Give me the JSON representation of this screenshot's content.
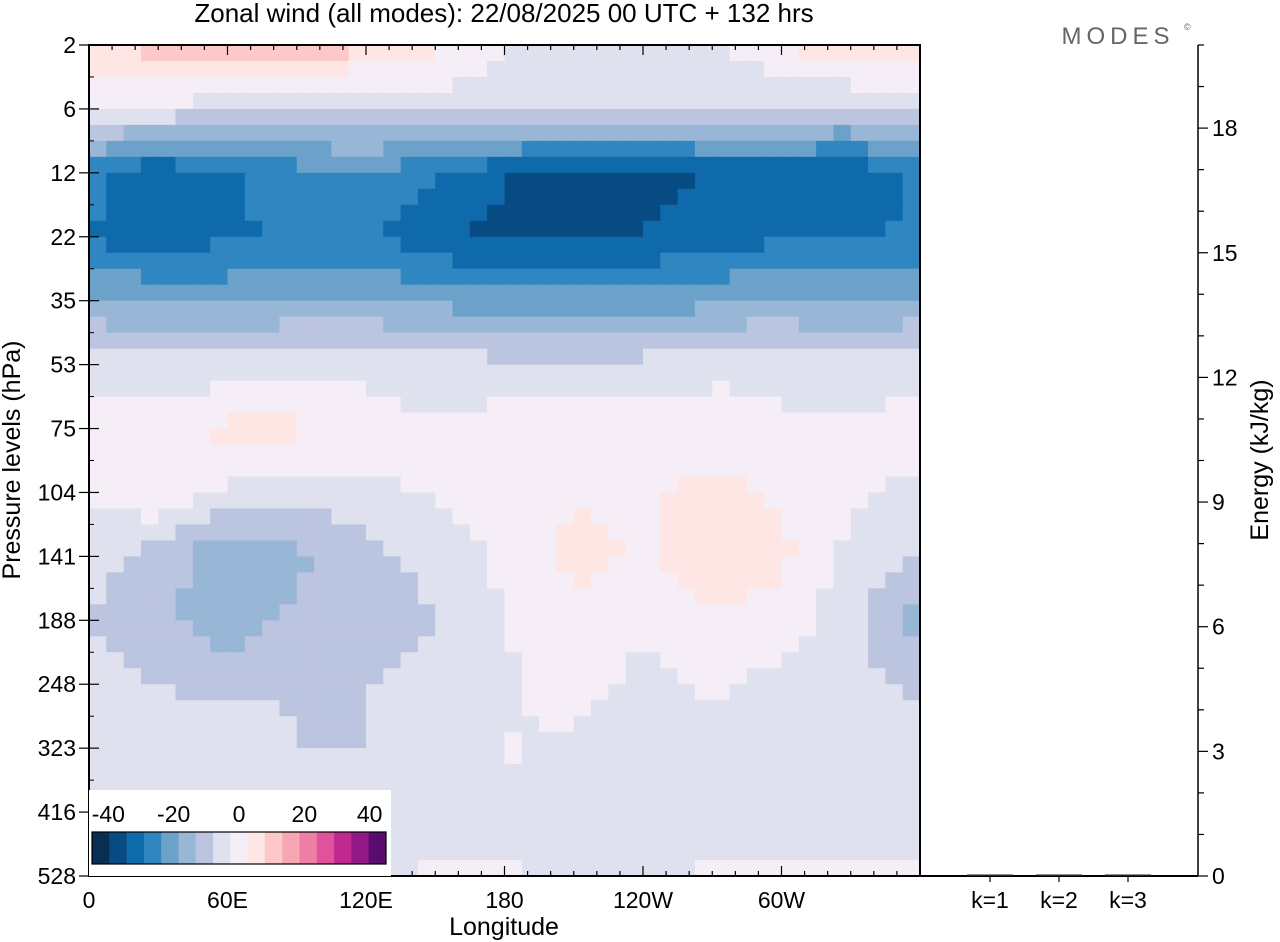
{
  "chart_data": {
    "type": "heatmap",
    "title": "Zonal wind (all modes):  22/08/2025  00 UTC  + 132 hrs",
    "brand": "MODES",
    "brand_mark": "©",
    "xlabel": "Longitude",
    "ylabel": "Pressure levels (hPa)",
    "x_ticks": [
      "0",
      "60E",
      "120E",
      "180",
      "120W",
      "60W"
    ],
    "x_tick_values": [
      0,
      60,
      120,
      180,
      240,
      300
    ],
    "xlim": [
      0,
      360
    ],
    "y_ticks": [
      "2",
      "6",
      "12",
      "22",
      "35",
      "53",
      "75",
      "104",
      "141",
      "188",
      "248",
      "323",
      "416",
      "528"
    ],
    "colorbar": {
      "tick_labels": [
        "-40",
        "-20",
        "0",
        "20",
        "40"
      ],
      "tick_values": [
        -40,
        -20,
        0,
        20,
        40
      ],
      "range": [
        -45,
        45
      ],
      "colors": [
        "#0a2e50",
        "#084a82",
        "#0e6aaa",
        "#2f86c0",
        "#6ca2ca",
        "#98b6d6",
        "#bcc5e0",
        "#dfe1ee",
        "#f6eef6",
        "#fde6e4",
        "#fcc9c8",
        "#f7a6b4",
        "#ef7ea5",
        "#e0529c",
        "#c02a90",
        "#921985",
        "#5a0c6e"
      ]
    },
    "field": {
      "rows": [
        {
          "level": "2",
          "values": [
            8,
            10,
            16,
            14,
            8,
            4,
            -2,
            -4,
            -6,
            -4,
            2,
            10,
            6
          ]
        },
        {
          "level": "6",
          "values": [
            -2,
            -4,
            -6,
            -8,
            -8,
            -6,
            -6,
            -6,
            -6,
            -6,
            -8,
            -10,
            -6
          ]
        },
        {
          "level": "12",
          "values": [
            -26,
            -34,
            -30,
            -26,
            -24,
            -28,
            -34,
            -36,
            -36,
            -34,
            -32,
            -34,
            -28
          ]
        },
        {
          "level": "22",
          "values": [
            -30,
            -32,
            -30,
            -28,
            -28,
            -34,
            -36,
            -36,
            -34,
            -32,
            -30,
            -30,
            -28
          ]
        },
        {
          "level": "35",
          "values": [
            -18,
            -20,
            -20,
            -18,
            -18,
            -20,
            -22,
            -22,
            -22,
            -20,
            -18,
            -20,
            -18
          ]
        },
        {
          "level": "53",
          "values": [
            -4,
            -6,
            -6,
            -4,
            -4,
            -6,
            -6,
            -6,
            -6,
            -4,
            -4,
            -6,
            -4
          ]
        },
        {
          "level": "75",
          "values": [
            0,
            0,
            4,
            4,
            0,
            -2,
            0,
            2,
            0,
            0,
            -2,
            -2,
            0
          ]
        },
        {
          "level": "104",
          "values": [
            -2,
            2,
            -4,
            -6,
            -4,
            -2,
            0,
            2,
            2,
            4,
            2,
            -2,
            -4
          ]
        },
        {
          "level": "141",
          "values": [
            -6,
            -10,
            -18,
            -14,
            -10,
            -6,
            -2,
            4,
            2,
            6,
            4,
            -4,
            -8
          ]
        },
        {
          "level": "188",
          "values": [
            -8,
            -12,
            -16,
            -12,
            -12,
            -8,
            -2,
            2,
            -2,
            2,
            0,
            -6,
            -16
          ]
        },
        {
          "level": "248",
          "values": [
            -6,
            -8,
            -10,
            -8,
            -8,
            -6,
            -4,
            0,
            -4,
            -2,
            -4,
            -6,
            -10
          ]
        },
        {
          "level": "323",
          "values": [
            -8,
            -6,
            -4,
            -8,
            -8,
            -6,
            -2,
            -4,
            -6,
            -4,
            -6,
            -4,
            -4
          ]
        },
        {
          "level": "416",
          "values": [
            -6,
            -4,
            -2,
            -4,
            -8,
            -4,
            -4,
            -6,
            -6,
            -4,
            -4,
            -4,
            -4
          ]
        },
        {
          "level": "528",
          "values": [
            -4,
            -2,
            0,
            -2,
            -4,
            -2,
            -2,
            -4,
            -4,
            -2,
            -2,
            -2,
            -2
          ]
        }
      ],
      "columns_longitude": [
        0,
        30,
        60,
        90,
        120,
        150,
        180,
        210,
        240,
        270,
        300,
        330,
        360
      ]
    },
    "energy_panel": {
      "ylabel": "Energy (kJ/kg)",
      "y_ticks": [
        "0",
        "3",
        "6",
        "9",
        "12",
        "15",
        "18"
      ],
      "y_tick_values": [
        0,
        3,
        6,
        9,
        12,
        15,
        18
      ],
      "ylim": [
        0,
        20
      ],
      "categories": [
        "k=1",
        "k=2",
        "k=3"
      ],
      "values": [
        0.02,
        0.02,
        0.01
      ]
    }
  }
}
